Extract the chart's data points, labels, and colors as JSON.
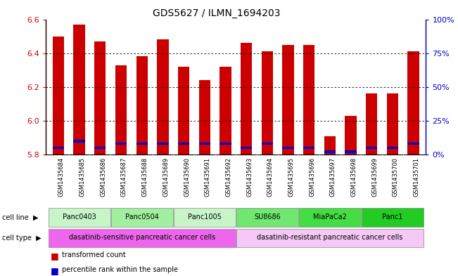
{
  "title": "GDS5627 / ILMN_1694203",
  "samples": [
    "GSM1435684",
    "GSM1435685",
    "GSM1435686",
    "GSM1435687",
    "GSM1435688",
    "GSM1435689",
    "GSM1435690",
    "GSM1435691",
    "GSM1435692",
    "GSM1435693",
    "GSM1435694",
    "GSM1435695",
    "GSM1435696",
    "GSM1435697",
    "GSM1435698",
    "GSM1435699",
    "GSM1435700",
    "GSM1435701"
  ],
  "transformed_count": [
    6.5,
    6.57,
    6.47,
    6.33,
    6.38,
    6.48,
    6.32,
    6.24,
    6.32,
    6.46,
    6.41,
    6.45,
    6.45,
    5.91,
    6.03,
    6.16,
    6.16,
    6.41
  ],
  "percentile_rank": [
    5,
    10,
    5,
    8,
    8,
    8,
    8,
    8,
    8,
    5,
    8,
    5,
    5,
    2,
    2,
    5,
    5,
    8
  ],
  "ylim": [
    5.8,
    6.6
  ],
  "yticks": [
    5.8,
    6.0,
    6.2,
    6.4,
    6.6
  ],
  "right_yticks": [
    0,
    25,
    50,
    75,
    100
  ],
  "cell_lines": [
    {
      "label": "Panc0403",
      "start": 0,
      "end": 3,
      "color": "#c8f5c8"
    },
    {
      "label": "Panc0504",
      "start": 3,
      "end": 6,
      "color": "#a0f0a0"
    },
    {
      "label": "Panc1005",
      "start": 6,
      "end": 9,
      "color": "#c8f5c8"
    },
    {
      "label": "SU8686",
      "start": 9,
      "end": 12,
      "color": "#70e870"
    },
    {
      "label": "MiaPaCa2",
      "start": 12,
      "end": 15,
      "color": "#44dd44"
    },
    {
      "label": "Panc1",
      "start": 15,
      "end": 18,
      "color": "#22cc22"
    }
  ],
  "cell_types": [
    {
      "label": "dasatinib-sensitive pancreatic cancer cells",
      "start": 0,
      "end": 9,
      "color": "#ee66ee"
    },
    {
      "label": "dasatinib-resistant pancreatic cancer cells",
      "start": 9,
      "end": 18,
      "color": "#f5c8f5"
    }
  ],
  "bar_color": "#cc0000",
  "blue_color": "#0000cc",
  "bar_bottom": 5.8,
  "bg_color": "#ffffff",
  "tick_label_color_left": "#cc0000",
  "tick_label_color_right": "#0000cc",
  "gsm_label_bg": "#d4d4d4"
}
